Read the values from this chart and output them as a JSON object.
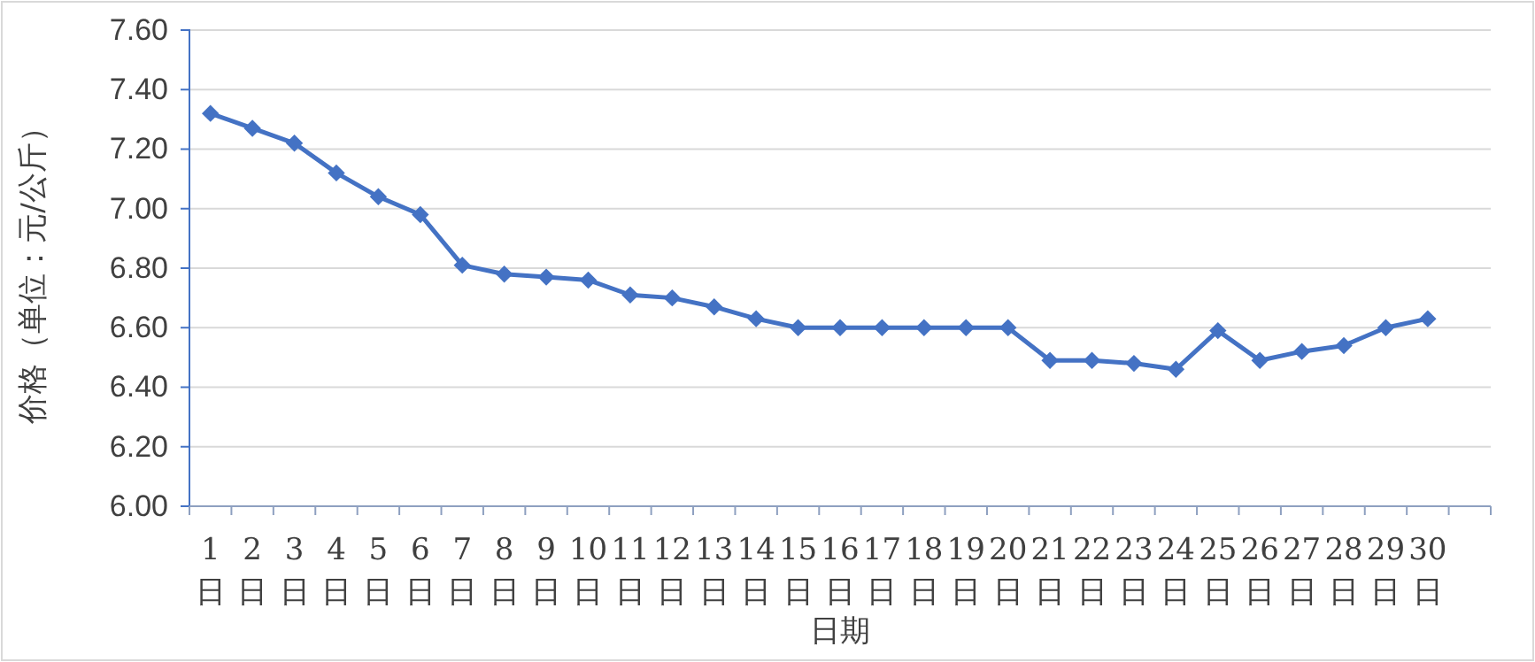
{
  "chart_data": {
    "type": "line",
    "xlabel": "日期",
    "ylabel": "价格（单位：元/公斤）",
    "categories": [
      "1日",
      "2日",
      "3日",
      "4日",
      "5日",
      "6日",
      "7日",
      "8日",
      "9日",
      "10日",
      "11日",
      "12日",
      "13日",
      "14日",
      "15日",
      "16日",
      "17日",
      "18日",
      "19日",
      "20日",
      "21日",
      "22日",
      "23日",
      "24日",
      "25日",
      "26日",
      "27日",
      "28日",
      "29日",
      "30日",
      null
    ],
    "series": [
      {
        "color": "#4472c4",
        "values": [
          7.32,
          7.27,
          7.22,
          7.12,
          7.04,
          6.98,
          6.81,
          6.78,
          6.77,
          6.76,
          6.71,
          6.7,
          6.67,
          6.63,
          6.6,
          6.6,
          6.6,
          6.6,
          6.6,
          6.6,
          6.49,
          6.49,
          6.48,
          6.46,
          6.59,
          6.49,
          6.52,
          6.54,
          6.6,
          6.63,
          null
        ]
      }
    ],
    "ylim": [
      6.0,
      7.6
    ],
    "yticks": [
      {
        "value": 6.0,
        "label": "6.00"
      },
      {
        "value": 6.2,
        "label": "6.20"
      },
      {
        "value": 6.4,
        "label": "6.40"
      },
      {
        "value": 6.6,
        "label": "6.60"
      },
      {
        "value": 6.8,
        "label": "6.80"
      },
      {
        "value": 7.0,
        "label": "7.00"
      },
      {
        "value": 7.2,
        "label": "7.20"
      },
      {
        "value": 7.4,
        "label": "7.40"
      },
      {
        "value": 7.6,
        "label": "7.60"
      }
    ],
    "grid": "y",
    "marker": "diamond",
    "line_style": "solid"
  }
}
